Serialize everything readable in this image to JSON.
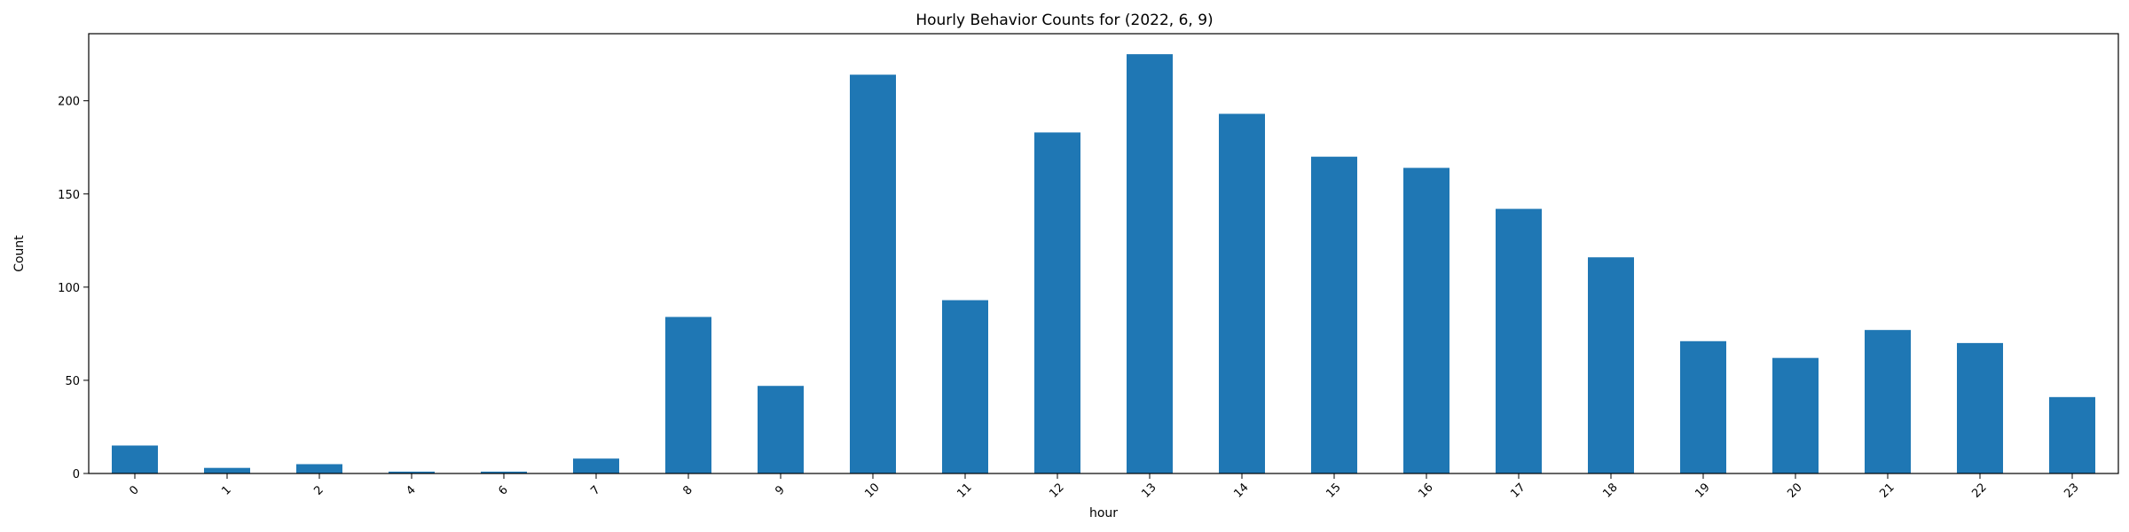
{
  "chart_data": {
    "type": "bar",
    "title": "Hourly Behavior Counts for (2022, 6, 9)",
    "xlabel": "hour",
    "ylabel": "Count",
    "categories": [
      "0",
      "1",
      "2",
      "4",
      "6",
      "7",
      "8",
      "9",
      "10",
      "11",
      "12",
      "13",
      "14",
      "15",
      "16",
      "17",
      "18",
      "19",
      "20",
      "21",
      "22",
      "23"
    ],
    "values": [
      15,
      3,
      5,
      1,
      1,
      8,
      84,
      47,
      214,
      93,
      183,
      225,
      193,
      170,
      164,
      142,
      116,
      71,
      62,
      77,
      70,
      41
    ],
    "ylim": [
      0,
      236
    ],
    "yticks": [
      0,
      50,
      100,
      150,
      200
    ],
    "bar_color": "#1f77b4",
    "grid": false,
    "legend": "none",
    "xtick_rotation": 45
  }
}
